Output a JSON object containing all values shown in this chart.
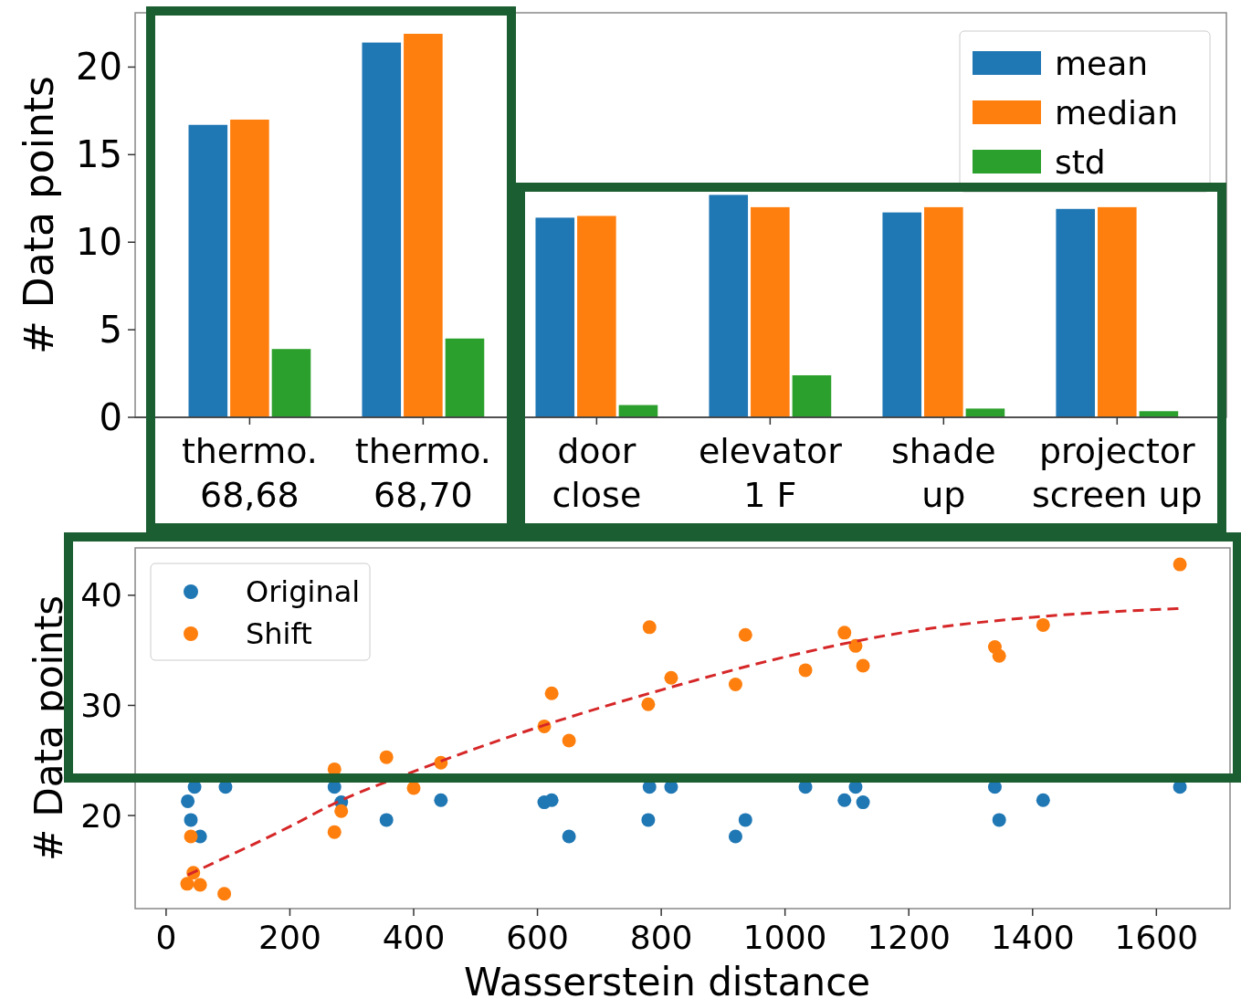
{
  "chart_data": [
    {
      "type": "bar",
      "ylabel": "# Data points",
      "categories": [
        "thermo.\n68,68",
        "thermo.\n68,70",
        "door\nclose",
        "elevator\n1 F",
        "shade\nup",
        "projector\nscreen up"
      ],
      "series": [
        {
          "name": "mean",
          "color": "#1f77b4",
          "values": [
            16.7,
            21.4,
            11.4,
            12.7,
            11.7,
            11.9
          ]
        },
        {
          "name": "median",
          "color": "#ff7f0e",
          "values": [
            17.0,
            21.9,
            11.5,
            12.0,
            12.0,
            12.0
          ]
        },
        {
          "name": "std",
          "color": "#2ca02c",
          "values": [
            3.9,
            4.5,
            0.7,
            2.4,
            0.5,
            0.35
          ]
        }
      ],
      "ylim": [
        0,
        23.1
      ],
      "yticks": [
        0,
        5,
        10,
        15,
        20
      ],
      "grid": false,
      "legend": "top right"
    },
    {
      "type": "scatter",
      "xlabel": "Wasserstein distance",
      "ylabel": "# Data points",
      "marker": "circle",
      "grid": false,
      "legend": "top left",
      "xlim": [
        -50,
        1719
      ],
      "xticks": [
        0,
        200,
        400,
        600,
        800,
        1000,
        1200,
        1400,
        1600
      ],
      "ylim": [
        11.55,
        44.3
      ],
      "yticks": [
        20,
        30,
        40
      ],
      "series": [
        {
          "name": "Original",
          "color": "#1f77b4",
          "x": [
            35,
            46,
            40,
            55,
            96,
            272,
            283,
            356,
            444,
            611,
            623,
            651,
            781,
            816,
            779,
            920,
            936,
            1033,
            1096,
            1114,
            1126,
            1339,
            1346,
            1417,
            1638
          ],
          "values": [
            21.3,
            22.6,
            19.6,
            18.1,
            22.6,
            22.6,
            21.2,
            19.6,
            21.4,
            21.2,
            21.4,
            18.1,
            22.6,
            22.6,
            19.6,
            18.1,
            19.6,
            22.6,
            21.4,
            22.6,
            21.2,
            22.6,
            19.6,
            21.4,
            22.6
          ]
        },
        {
          "name": "Shift",
          "color": "#ff7f0e",
          "x": [
            34,
            44,
            55,
            40,
            94,
            272,
            272,
            283,
            356,
            400,
            444,
            611,
            623,
            651,
            781,
            816,
            779,
            920,
            936,
            1033,
            1096,
            1114,
            1126,
            1339,
            1346,
            1417,
            1638
          ],
          "values": [
            13.8,
            14.8,
            13.7,
            18.1,
            12.9,
            24.2,
            18.5,
            20.4,
            25.3,
            22.5,
            24.8,
            28.1,
            31.1,
            26.8,
            37.1,
            32.5,
            30.1,
            31.9,
            36.4,
            33.2,
            36.6,
            35.4,
            33.6,
            35.3,
            34.5,
            37.3,
            42.8
          ]
        },
        {
          "type": "line",
          "color": "#d62728",
          "line_style": "dashed",
          "marker": "none",
          "x": [
            35,
            100,
            200,
            272,
            400,
            611,
            800,
            1000,
            1200,
            1400,
            1640
          ],
          "values": [
            14.6,
            16.3,
            19.0,
            21.1,
            24.0,
            28.2,
            31.4,
            34.4,
            36.7,
            38.0,
            38.8
          ]
        }
      ]
    }
  ]
}
